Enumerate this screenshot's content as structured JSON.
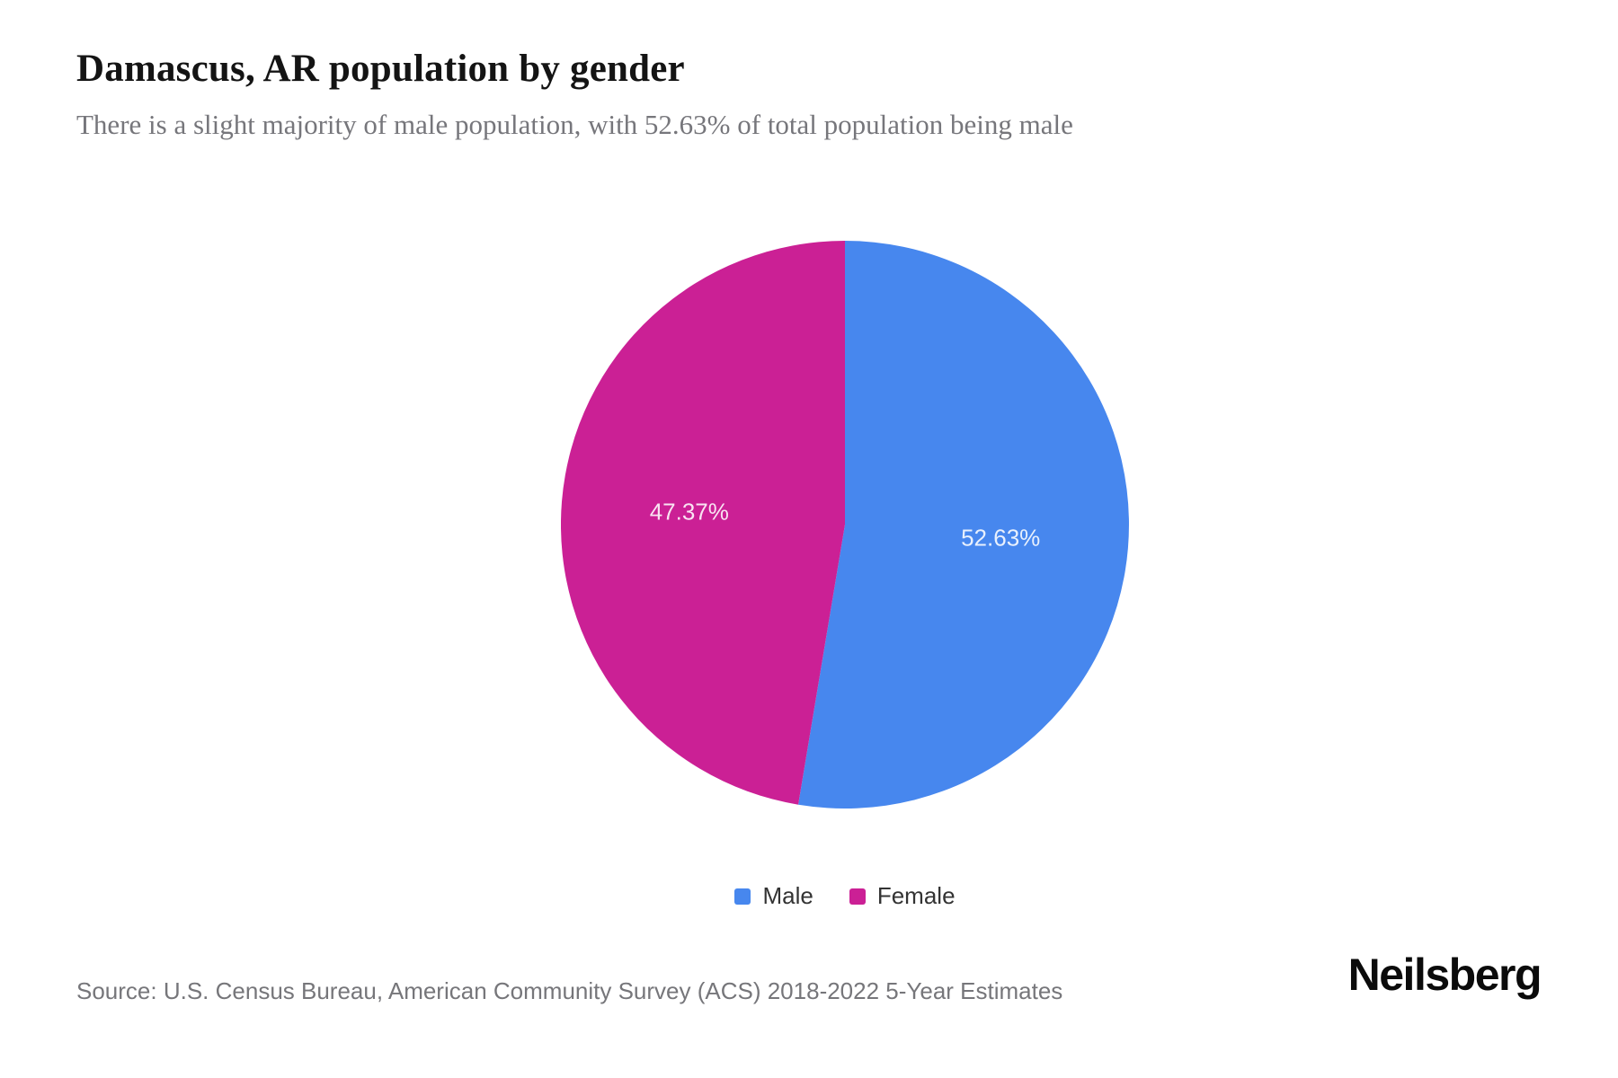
{
  "header": {
    "title": "Damascus, AR population by gender",
    "subtitle": "There is a slight majority of male population, with 52.63% of total population being male"
  },
  "chart_data": {
    "type": "pie",
    "title": "Damascus, AR population by gender",
    "start_angle_deg": 0,
    "direction": "clockwise",
    "legend_position": "bottom",
    "data_label_color": "#FFFFFF",
    "slices": [
      {
        "name": "Male",
        "value": 52.63,
        "label": "52.63%",
        "color": "#4787EE"
      },
      {
        "name": "Female",
        "value": 47.37,
        "label": "47.37%",
        "color": "#CB2095"
      }
    ]
  },
  "footer": {
    "source": "Source: U.S. Census Bureau, American Community Survey (ACS) 2018-2022 5-Year Estimates",
    "brand": "Neilsberg"
  }
}
